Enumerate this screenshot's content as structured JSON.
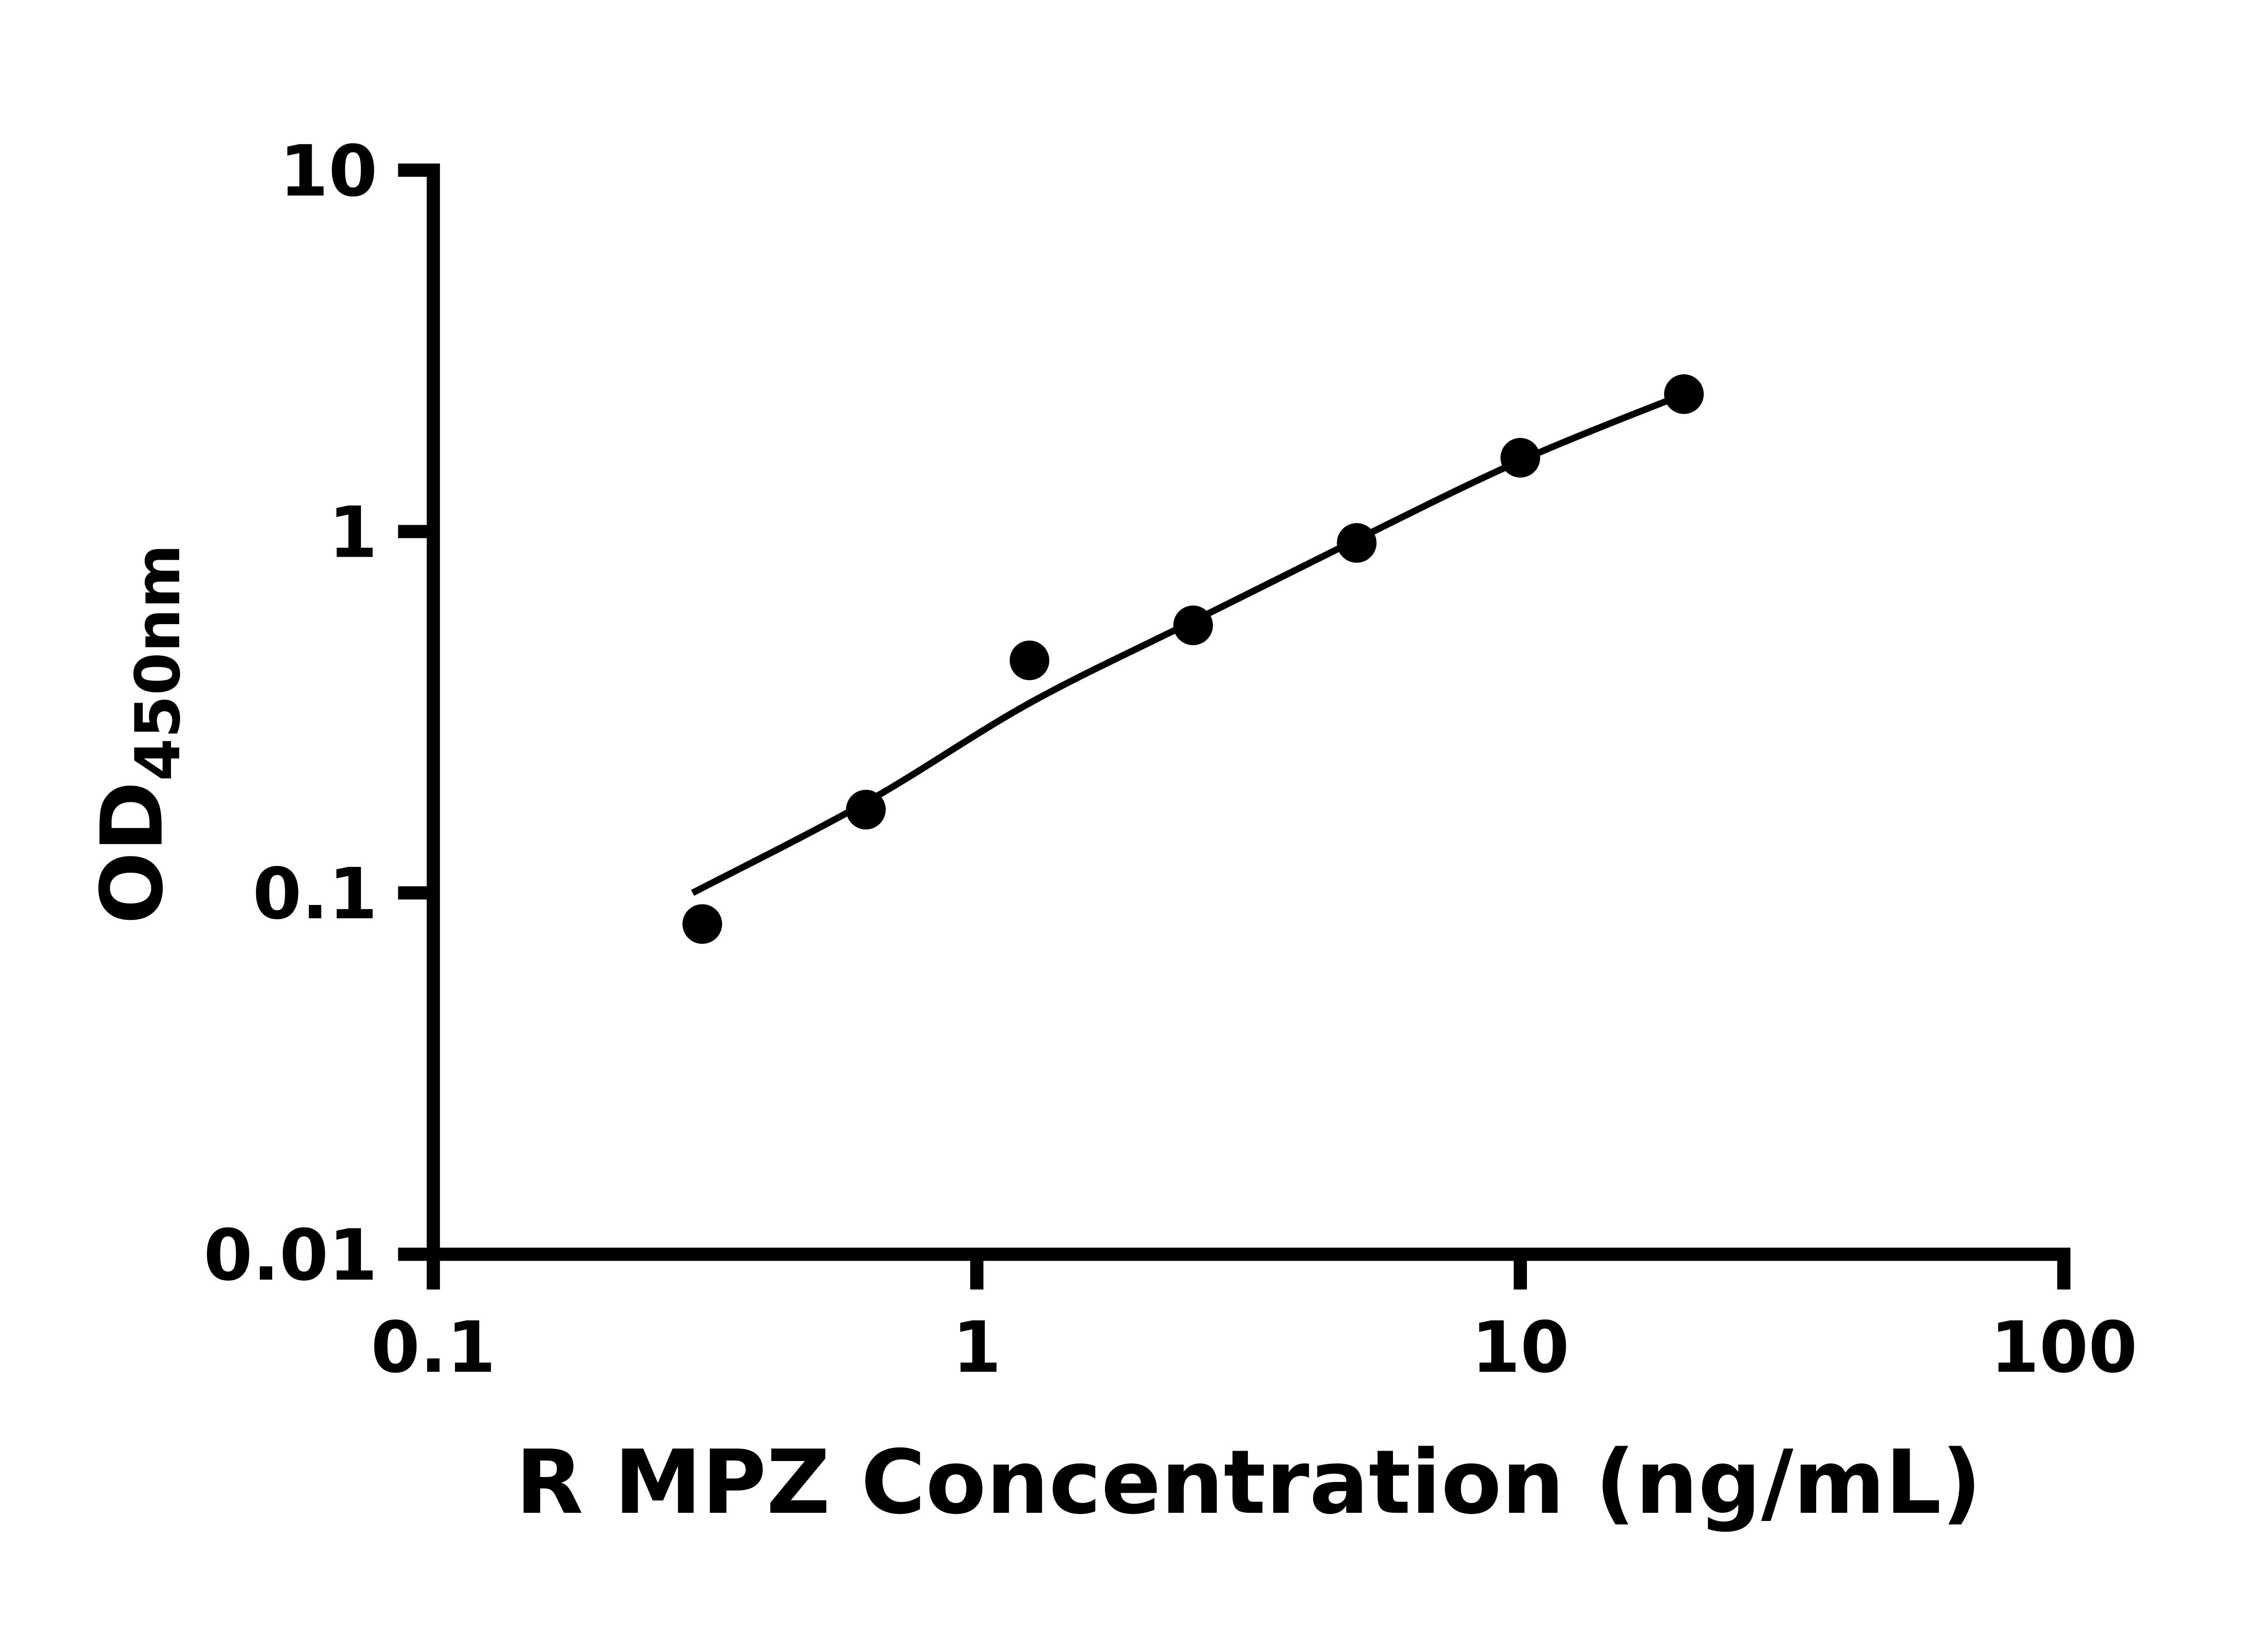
{
  "figure": {
    "background": "#ffffff",
    "ink_color": "#000000"
  },
  "chart_data": {
    "type": "scatter",
    "title": "",
    "xlabel": "R MPZ Concentration (ng/mL)",
    "ylabel_main": "OD",
    "ylabel_sub": "450nm",
    "x_scale": "log",
    "y_scale": "log",
    "xlim": [
      0.1,
      100
    ],
    "ylim": [
      0.01,
      10
    ],
    "x_ticks": [
      0.1,
      1,
      10,
      100
    ],
    "x_tick_labels": [
      "0.1",
      "1",
      "10",
      "100"
    ],
    "y_ticks": [
      0.01,
      0.1,
      1,
      10
    ],
    "y_tick_labels": [
      "0.01",
      "0.1",
      "1",
      "10"
    ],
    "grid": false,
    "legend": "none",
    "series": [
      {
        "name": "standard-points",
        "kind": "scatter",
        "marker": "filled-circle",
        "color": "#000000",
        "points": [
          {
            "x": 0.3125,
            "y": 0.082
          },
          {
            "x": 0.625,
            "y": 0.17
          },
          {
            "x": 1.25,
            "y": 0.44
          },
          {
            "x": 2.5,
            "y": 0.55
          },
          {
            "x": 5,
            "y": 0.93
          },
          {
            "x": 10,
            "y": 1.6
          },
          {
            "x": 20,
            "y": 2.4
          }
        ]
      },
      {
        "name": "fit-curve",
        "kind": "line",
        "color": "#000000",
        "points": [
          {
            "x": 0.3,
            "y": 0.1
          },
          {
            "x": 0.625,
            "y": 0.178
          },
          {
            "x": 1.25,
            "y": 0.335
          },
          {
            "x": 2.5,
            "y": 0.565
          },
          {
            "x": 5,
            "y": 0.95
          },
          {
            "x": 10,
            "y": 1.57
          },
          {
            "x": 20,
            "y": 2.4
          }
        ]
      }
    ]
  }
}
